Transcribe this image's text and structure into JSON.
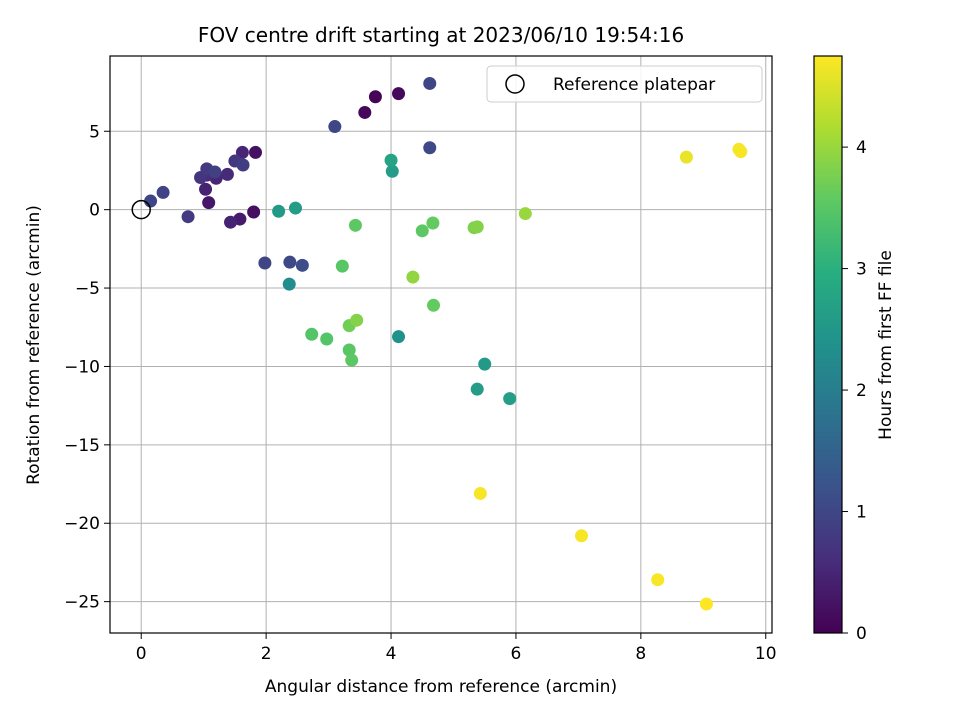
{
  "chart_data": {
    "type": "scatter",
    "title": "FOV centre drift starting at 2023/06/10 19:54:16",
    "xlabel": "Angular distance from reference (arcmin)",
    "ylabel": "Rotation from reference (arcmin)",
    "xlim": [
      -0.5,
      10.1
    ],
    "ylim": [
      -27,
      9.8
    ],
    "xticks": [
      0,
      2,
      4,
      6,
      8,
      10
    ],
    "xtick_labels": [
      "0",
      "2",
      "4",
      "6",
      "8",
      "10"
    ],
    "yticks": [
      5,
      0,
      -5,
      -10,
      -15,
      -20,
      -25
    ],
    "ytick_labels": [
      "5",
      "0",
      "−5",
      "−10",
      "−15",
      "−20",
      "−25"
    ],
    "grid": true,
    "legend": {
      "placement": "top-right",
      "entries": [
        "Reference platepar"
      ]
    },
    "reference_point": {
      "x": 0,
      "y": 0,
      "label": "Reference platepar"
    },
    "colorbar": {
      "label": "Hours from first FF file",
      "colormap": "viridis",
      "range": [
        0,
        4.75
      ],
      "ticks": [
        0,
        1,
        2,
        3,
        4
      ],
      "tick_labels": [
        "0",
        "1",
        "2",
        "3",
        "4"
      ]
    },
    "points": [
      {
        "x": 3.75,
        "y": 7.2,
        "c": 0.05
      },
      {
        "x": 4.12,
        "y": 7.4,
        "c": 0.1
      },
      {
        "x": 3.58,
        "y": 6.2,
        "c": 0.1
      },
      {
        "x": 1.83,
        "y": 3.65,
        "c": 0.2
      },
      {
        "x": 1.8,
        "y": -0.15,
        "c": 0.2
      },
      {
        "x": 1.08,
        "y": 0.45,
        "c": 0.3
      },
      {
        "x": 1.58,
        "y": -0.6,
        "c": 0.35
      },
      {
        "x": 1.43,
        "y": -0.8,
        "c": 0.45
      },
      {
        "x": 1.03,
        "y": 1.3,
        "c": 0.45
      },
      {
        "x": 1.62,
        "y": 3.65,
        "c": 0.5
      },
      {
        "x": 1.2,
        "y": 2.0,
        "c": 0.5
      },
      {
        "x": 1.38,
        "y": 2.25,
        "c": 0.55
      },
      {
        "x": 1.05,
        "y": 2.2,
        "c": 0.6
      },
      {
        "x": 0.95,
        "y": 2.05,
        "c": 0.7
      },
      {
        "x": 1.5,
        "y": 3.1,
        "c": 0.75
      },
      {
        "x": 0.75,
        "y": -0.45,
        "c": 0.8
      },
      {
        "x": 1.05,
        "y": 2.6,
        "c": 0.8
      },
      {
        "x": 1.63,
        "y": 2.85,
        "c": 0.85
      },
      {
        "x": 1.18,
        "y": 2.4,
        "c": 0.9
      },
      {
        "x": 0.35,
        "y": 1.1,
        "c": 0.95
      },
      {
        "x": 0.15,
        "y": 0.55,
        "c": 1.0
      },
      {
        "x": 3.1,
        "y": 5.3,
        "c": 1.0
      },
      {
        "x": 4.62,
        "y": 8.05,
        "c": 1.0
      },
      {
        "x": 4.62,
        "y": 3.95,
        "c": 1.05
      },
      {
        "x": 1.98,
        "y": -3.4,
        "c": 1.0
      },
      {
        "x": 2.38,
        "y": -3.35,
        "c": 1.05
      },
      {
        "x": 2.58,
        "y": -3.55,
        "c": 1.1
      },
      {
        "x": 2.37,
        "y": -4.75,
        "c": 2.3
      },
      {
        "x": 4.12,
        "y": -8.1,
        "c": 2.4
      },
      {
        "x": 2.2,
        "y": -0.1,
        "c": 2.55
      },
      {
        "x": 2.47,
        "y": 0.1,
        "c": 2.6
      },
      {
        "x": 4.02,
        "y": 2.45,
        "c": 2.6
      },
      {
        "x": 4.0,
        "y": 3.15,
        "c": 2.75
      },
      {
        "x": 5.5,
        "y": -9.85,
        "c": 2.55
      },
      {
        "x": 5.38,
        "y": -11.45,
        "c": 2.6
      },
      {
        "x": 5.9,
        "y": -12.05,
        "c": 2.65
      },
      {
        "x": 3.22,
        "y": -3.6,
        "c": 3.5
      },
      {
        "x": 3.43,
        "y": -1.0,
        "c": 3.55
      },
      {
        "x": 2.73,
        "y": -7.95,
        "c": 3.45
      },
      {
        "x": 2.97,
        "y": -8.25,
        "c": 3.45
      },
      {
        "x": 3.33,
        "y": -8.95,
        "c": 3.5
      },
      {
        "x": 3.37,
        "y": -9.6,
        "c": 3.55
      },
      {
        "x": 3.33,
        "y": -7.4,
        "c": 3.7
      },
      {
        "x": 3.45,
        "y": -7.05,
        "c": 3.85
      },
      {
        "x": 4.5,
        "y": -1.35,
        "c": 3.55
      },
      {
        "x": 4.67,
        "y": -0.85,
        "c": 3.6
      },
      {
        "x": 4.68,
        "y": -6.1,
        "c": 3.6
      },
      {
        "x": 4.35,
        "y": -4.3,
        "c": 3.95
      },
      {
        "x": 5.33,
        "y": -1.15,
        "c": 3.8
      },
      {
        "x": 5.38,
        "y": -1.1,
        "c": 3.85
      },
      {
        "x": 6.15,
        "y": -0.25,
        "c": 4.0
      },
      {
        "x": 8.73,
        "y": 3.35,
        "c": 4.6
      },
      {
        "x": 9.57,
        "y": 3.85,
        "c": 4.7
      },
      {
        "x": 9.6,
        "y": 3.7,
        "c": 4.7
      },
      {
        "x": 5.43,
        "y": -18.1,
        "c": 4.7
      },
      {
        "x": 7.05,
        "y": -20.8,
        "c": 4.7
      },
      {
        "x": 8.27,
        "y": -23.6,
        "c": 4.7
      },
      {
        "x": 9.05,
        "y": -25.15,
        "c": 4.75
      }
    ]
  }
}
